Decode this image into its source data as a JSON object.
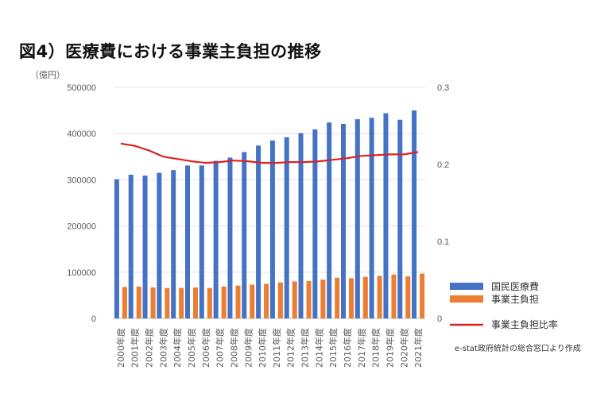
{
  "title": "図4）医療費における事業主負担の推移",
  "chart_data": {
    "type": "bar",
    "title": "図4）医療費における事業主負担の推移",
    "unit_label": "（億円）",
    "categories": [
      "2000年度",
      "2001年度",
      "2002年度",
      "2003年度",
      "2004年度",
      "2005年度",
      "2006年度",
      "2007年度",
      "2008年度",
      "2009年度",
      "2010年度",
      "2011年度",
      "2012年度",
      "2013年度",
      "2014年度",
      "2015年度",
      "2016年度",
      "2017年度",
      "2018年度",
      "2019年度",
      "2020年度",
      "2021年度"
    ],
    "ylim": [
      0,
      500000
    ],
    "y_ticks": [
      "0",
      "100000",
      "200000",
      "300000",
      "400000",
      "500000"
    ],
    "y2lim": [
      0,
      0.3
    ],
    "y2_ticks": [
      "0",
      "0.1",
      "0.2",
      "0.3"
    ],
    "series": [
      {
        "name": "国民医療費",
        "type": "bar",
        "axis": "left",
        "color": "#4472C4",
        "values": [
          301000,
          311000,
          309000,
          315000,
          321000,
          331000,
          331000,
          341000,
          348000,
          360000,
          374000,
          385000,
          392000,
          401000,
          409000,
          424000,
          421000,
          431000,
          434000,
          444000,
          430000,
          450000
        ]
      },
      {
        "name": "事業主負担",
        "type": "bar",
        "axis": "left",
        "color": "#ED7D31",
        "values": [
          68000,
          69000,
          67000,
          66000,
          66000,
          67000,
          66000,
          69000,
          71000,
          73000,
          75000,
          78000,
          80000,
          81000,
          84000,
          88000,
          87000,
          90000,
          92000,
          95000,
          91000,
          97000
        ]
      },
      {
        "name": "事業主負担比率",
        "type": "line",
        "axis": "right",
        "color": "#D92222",
        "values": [
          0.227,
          0.224,
          0.218,
          0.21,
          0.207,
          0.204,
          0.202,
          0.203,
          0.205,
          0.204,
          0.202,
          0.202,
          0.203,
          0.203,
          0.204,
          0.206,
          0.208,
          0.211,
          0.212,
          0.213,
          0.213,
          0.216
        ]
      }
    ],
    "legend_position": "right",
    "source_note": "e-stat政府統計の総合窓口より作成"
  }
}
